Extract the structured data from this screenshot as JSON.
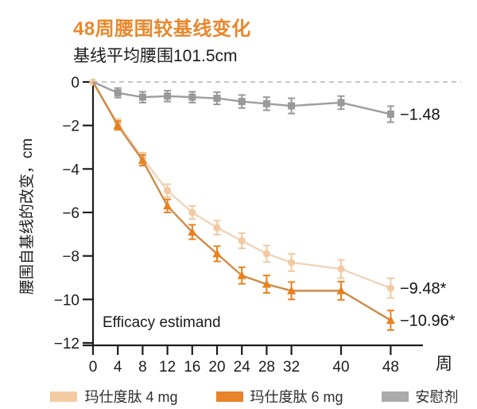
{
  "header": {
    "title": "48周腰围较基线变化",
    "subtitle": "基线平均腰围101.5cm"
  },
  "colors": {
    "title_accent": "#E8872B",
    "axis": "#1c1c1c",
    "zero_line": "#b3b3b3",
    "label_text": "#111111"
  },
  "chart_data": {
    "type": "line",
    "title": "48周腰围较基线变化",
    "subtitle": "基线平均腰围101.5cm",
    "xlabel": "周",
    "ylabel": "腰围自基线的改变，cm",
    "annotation": "Efficacy estimand",
    "x": [
      0,
      4,
      8,
      12,
      16,
      20,
      24,
      28,
      32,
      40,
      48
    ],
    "yticks": [
      0,
      -2,
      -4,
      -6,
      -8,
      -10,
      -12
    ],
    "ylim": [
      -12,
      0
    ],
    "zero_line_dashed": true,
    "legend_position": "bottom",
    "series": [
      {
        "name": "玛仕度肽 4 mg",
        "values": [
          0,
          -1.9,
          -3.5,
          -5.0,
          -6.0,
          -6.7,
          -7.3,
          -7.9,
          -8.3,
          -8.6,
          -9.48
        ],
        "errors": [
          0,
          0.2,
          0.25,
          0.3,
          0.3,
          0.32,
          0.35,
          0.38,
          0.4,
          0.42,
          0.45
        ],
        "end_label": "−9.48*",
        "marker": "circle",
        "line_color": "#F0D4BA",
        "marker_color": "#F2C9A2",
        "swatch_color": "#F4CBA3"
      },
      {
        "name": "玛仕度肽 6 mg",
        "values": [
          0,
          -2.0,
          -3.6,
          -5.7,
          -6.9,
          -7.9,
          -8.9,
          -9.3,
          -9.6,
          -9.6,
          -10.96
        ],
        "errors": [
          0,
          0.2,
          0.25,
          0.3,
          0.33,
          0.35,
          0.38,
          0.4,
          0.4,
          0.42,
          0.45
        ],
        "end_label": "−10.96*",
        "marker": "triangle",
        "line_color": "#CE8B45",
        "marker_color": "#E8811F",
        "swatch_color": "#E8822B"
      },
      {
        "name": "安慰剂",
        "values": [
          0,
          -0.5,
          -0.7,
          -0.65,
          -0.7,
          -0.75,
          -0.9,
          -1.0,
          -1.1,
          -0.95,
          -1.48
        ],
        "errors": [
          0,
          0.22,
          0.25,
          0.25,
          0.25,
          0.28,
          0.3,
          0.3,
          0.35,
          0.3,
          0.37
        ],
        "end_label": "−1.48",
        "marker": "square",
        "line_color": "#9E9E9E",
        "marker_color": "#999999",
        "swatch_color": "#ABABAB"
      }
    ]
  }
}
